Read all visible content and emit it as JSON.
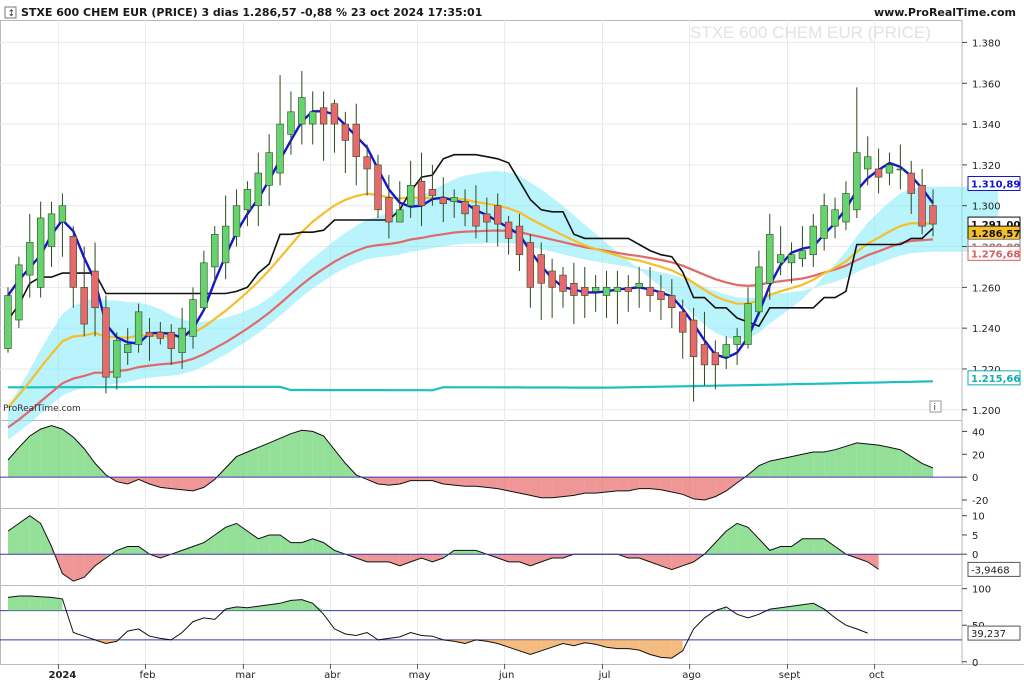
{
  "header": {
    "title": "STXE 600 CHEM EUR (PRICE) 3 dias 1.286,57 -0,88 % 23 oct 2024 17:35:01",
    "site": "www.ProRealTime.com",
    "watermark": "STXE 600 CHEM EUR (PRICE)",
    "brand": "ProRealTime.com",
    "info_icon": "info-icon"
  },
  "colors": {
    "up": "#66d36e",
    "down": "#e8696b",
    "wick": "#2b4a1f",
    "fast_ma": "#1414d2",
    "mid_ma": "#f5bf2a",
    "slow_ma": "#e06a6a",
    "long_ma": "#1fbec0",
    "kijun": "#111111",
    "cloud": "#7fe9f7",
    "cloud_red": "#f6b8bc",
    "grid": "#e9e9e9"
  },
  "chart_data": [
    {
      "type": "candlestick",
      "name": "price",
      "y_ticks": [
        "1.200",
        "1.220",
        "1.240",
        "1.260",
        "1.280",
        "1.300",
        "1.320",
        "1.340",
        "1.360",
        "1.380"
      ],
      "ylim": [
        1195,
        1391
      ],
      "x_labels": [
        "2024",
        "feb",
        "mar",
        "abr",
        "may",
        "jun",
        "jul",
        "ago",
        "sept",
        "oct"
      ],
      "x_label_index": [
        5,
        13,
        22,
        30,
        38,
        46,
        55,
        63,
        72,
        80
      ],
      "bars": [
        [
          1230,
          1256,
          1228,
          1260
        ],
        [
          1244,
          1271,
          1240,
          1275
        ],
        [
          1266,
          1282,
          1255,
          1296
        ],
        [
          1260,
          1294,
          1255,
          1302
        ],
        [
          1280,
          1296,
          1270,
          1302
        ],
        [
          1292,
          1300,
          1275,
          1306
        ],
        [
          1285,
          1260,
          1250,
          1290
        ],
        [
          1260,
          1242,
          1236,
          1280
        ],
        [
          1268,
          1250,
          1236,
          1282
        ],
        [
          1250,
          1216,
          1208,
          1256
        ],
        [
          1216,
          1234,
          1210,
          1238
        ],
        [
          1228,
          1232,
          1222,
          1240
        ],
        [
          1232,
          1248,
          1228,
          1252
        ],
        [
          1238,
          1236,
          1224,
          1245
        ],
        [
          1238,
          1235,
          1232,
          1243
        ],
        [
          1238,
          1230,
          1222,
          1242
        ],
        [
          1228,
          1240,
          1220,
          1250
        ],
        [
          1236,
          1254,
          1230,
          1260
        ],
        [
          1250,
          1272,
          1248,
          1278
        ],
        [
          1270,
          1286,
          1262,
          1290
        ],
        [
          1272,
          1290,
          1264,
          1305
        ],
        [
          1285,
          1300,
          1280,
          1308
        ],
        [
          1298,
          1308,
          1290,
          1312
        ],
        [
          1300,
          1316,
          1290,
          1326
        ],
        [
          1310,
          1326,
          1300,
          1335
        ],
        [
          1316,
          1340,
          1310,
          1364
        ],
        [
          1335,
          1346,
          1325,
          1356
        ],
        [
          1340,
          1353,
          1330,
          1366
        ],
        [
          1340,
          1346,
          1330,
          1356
        ],
        [
          1348,
          1340,
          1322,
          1356
        ],
        [
          1350,
          1340,
          1326,
          1352
        ],
        [
          1340,
          1332,
          1316,
          1346
        ],
        [
          1340,
          1324,
          1310,
          1350
        ],
        [
          1324,
          1318,
          1305,
          1330
        ],
        [
          1320,
          1298,
          1294,
          1325
        ],
        [
          1304,
          1292,
          1284,
          1315
        ],
        [
          1292,
          1298,
          1292,
          1312
        ],
        [
          1300,
          1310,
          1294,
          1322
        ],
        [
          1312,
          1300,
          1290,
          1326
        ],
        [
          1308,
          1305,
          1300,
          1320
        ],
        [
          1304,
          1301,
          1292,
          1314
        ],
        [
          1302,
          1304,
          1294,
          1308
        ],
        [
          1302,
          1296,
          1290,
          1308
        ],
        [
          1300,
          1290,
          1284,
          1310
        ],
        [
          1296,
          1292,
          1282,
          1304
        ],
        [
          1300,
          1291,
          1280,
          1306
        ],
        [
          1292,
          1284,
          1276,
          1295
        ],
        [
          1290,
          1276,
          1268,
          1296
        ],
        [
          1282,
          1260,
          1250,
          1286
        ],
        [
          1276,
          1262,
          1244,
          1282
        ],
        [
          1268,
          1260,
          1245,
          1274
        ],
        [
          1266,
          1258,
          1250,
          1270
        ],
        [
          1262,
          1256,
          1242,
          1272
        ],
        [
          1260,
          1256,
          1245,
          1270
        ],
        [
          1258,
          1260,
          1248,
          1266
        ],
        [
          1256,
          1260,
          1245,
          1268
        ],
        [
          1258,
          1260,
          1242,
          1268
        ],
        [
          1260,
          1258,
          1248,
          1266
        ],
        [
          1260,
          1262,
          1250,
          1270
        ],
        [
          1260,
          1256,
          1248,
          1270
        ],
        [
          1258,
          1254,
          1244,
          1266
        ],
        [
          1256,
          1250,
          1240,
          1264
        ],
        [
          1248,
          1238,
          1225,
          1254
        ],
        [
          1244,
          1226,
          1204,
          1250
        ],
        [
          1232,
          1222,
          1212,
          1248
        ],
        [
          1228,
          1222,
          1210,
          1234
        ],
        [
          1226,
          1232,
          1220,
          1236
        ],
        [
          1232,
          1236,
          1222,
          1240
        ],
        [
          1232,
          1252,
          1230,
          1260
        ],
        [
          1248,
          1270,
          1246,
          1278
        ],
        [
          1262,
          1286,
          1254,
          1296
        ],
        [
          1272,
          1276,
          1266,
          1290
        ],
        [
          1272,
          1276,
          1262,
          1282
        ],
        [
          1274,
          1278,
          1270,
          1290
        ],
        [
          1276,
          1290,
          1270,
          1296
        ],
        [
          1284,
          1300,
          1278,
          1306
        ],
        [
          1290,
          1298,
          1284,
          1304
        ],
        [
          1292,
          1306,
          1288,
          1312
        ],
        [
          1298,
          1326,
          1294,
          1358
        ],
        [
          1318,
          1324,
          1310,
          1334
        ],
        [
          1318,
          1314,
          1306,
          1328
        ],
        [
          1316,
          1320,
          1310,
          1326
        ],
        [
          1318,
          1318,
          1308,
          1330
        ],
        [
          1316,
          1306,
          1296,
          1322
        ],
        [
          1310,
          1290,
          1286,
          1318
        ],
        [
          1300,
          1291,
          1285,
          1308
        ]
      ],
      "price_tags": [
        {
          "value": "1.310,89",
          "color": "#1414d2",
          "y": 1310.89
        },
        {
          "value": "1.291,00",
          "color": "#111111",
          "y": 1291.0
        },
        {
          "value": "1.286,57",
          "color": "#111111",
          "y": 1286.57
        },
        {
          "value": "1.280,08",
          "color": "#888888",
          "y": 1280.08
        },
        {
          "value": "1.276,68",
          "color": "#d46060",
          "y": 1276.68
        },
        {
          "value": "1.215,66",
          "color": "#12aeb3",
          "y": 1215.66
        }
      ]
    },
    {
      "type": "area",
      "name": "oscillator_1",
      "y_ticks": [
        "40",
        "20",
        "0",
        "-20"
      ],
      "ylim": [
        -27,
        50
      ],
      "values": [
        15,
        26,
        36,
        42,
        45,
        42,
        35,
        25,
        12,
        2,
        -4,
        -6,
        -2,
        -6,
        -9,
        -10,
        -11,
        -12,
        -9,
        -2,
        8,
        18,
        22,
        26,
        30,
        34,
        38,
        41,
        40,
        36,
        24,
        12,
        2,
        -2,
        -6,
        -7,
        -6,
        -3,
        -3,
        -3,
        -6,
        -7,
        -8,
        -8,
        -9,
        -10,
        -12,
        -14,
        -16,
        -18,
        -18,
        -17,
        -16,
        -14,
        -14,
        -13,
        -12,
        -12,
        -10,
        -10,
        -11,
        -13,
        -15,
        -19,
        -20,
        -17,
        -12,
        -5,
        2,
        10,
        14,
        16,
        18,
        20,
        22,
        22,
        24,
        27,
        30,
        29,
        28,
        26,
        24,
        18,
        12,
        8
      ]
    },
    {
      "type": "area",
      "name": "oscillator_2",
      "y_ticks": [
        "10",
        "5",
        "0"
      ],
      "ylim": [
        -8,
        12
      ],
      "values": [
        6,
        8,
        10,
        8,
        2,
        -5,
        -7,
        -6,
        -3,
        -1,
        1,
        2,
        2,
        0,
        -1,
        0,
        1,
        2,
        3,
        5,
        7,
        8,
        6,
        4,
        5,
        5,
        3,
        3,
        4,
        3,
        1,
        0,
        -1,
        -2,
        -2,
        -2,
        -3,
        -2,
        -1,
        -2,
        -1,
        1,
        1,
        1,
        0,
        -1,
        -2,
        -2,
        -3,
        -2,
        -1,
        -1,
        0,
        0,
        0,
        0,
        0,
        -1,
        -1,
        -2,
        -3,
        -4,
        -3,
        -2,
        0,
        3,
        6,
        8,
        7,
        4,
        1,
        2,
        2,
        4,
        4,
        4,
        2,
        0,
        -1,
        -2,
        -3.9468
      ],
      "last_label": "-3,9468"
    },
    {
      "type": "line",
      "name": "oscillator_3",
      "y_ticks": [
        "100",
        "50",
        "0"
      ],
      "ylim": [
        -3,
        105
      ],
      "bands": [
        70,
        30
      ],
      "values": [
        88,
        90,
        90,
        89,
        88,
        86,
        40,
        35,
        30,
        25,
        28,
        42,
        45,
        35,
        32,
        30,
        40,
        55,
        60,
        58,
        72,
        75,
        74,
        76,
        78,
        80,
        84,
        85,
        80,
        65,
        45,
        38,
        36,
        40,
        30,
        32,
        34,
        40,
        36,
        35,
        30,
        28,
        25,
        30,
        28,
        25,
        20,
        15,
        10,
        15,
        20,
        25,
        22,
        26,
        24,
        20,
        18,
        18,
        16,
        10,
        6,
        5,
        15,
        45,
        60,
        70,
        75,
        65,
        60,
        65,
        72,
        74,
        76,
        78,
        80,
        72,
        60,
        50,
        45,
        39.237
      ],
      "last_label": "39,237"
    }
  ]
}
